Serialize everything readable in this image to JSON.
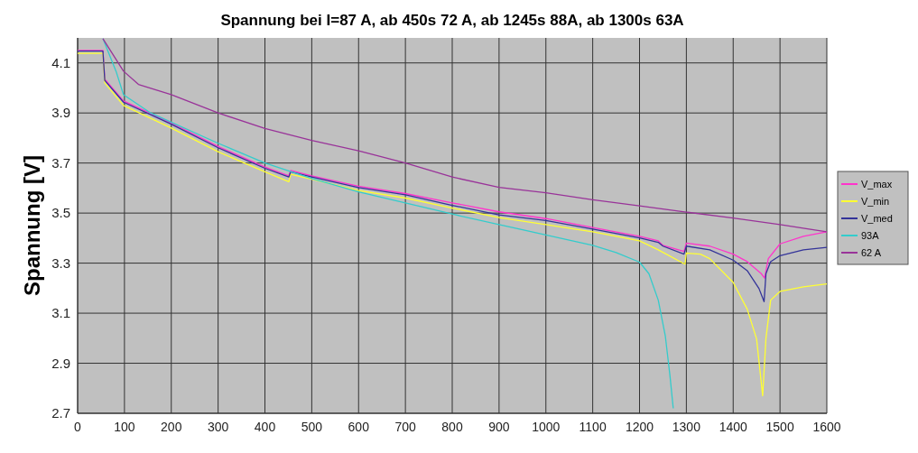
{
  "chart_data": {
    "type": "line",
    "title": "Spannung bei I=87 A, ab 450s 72 A, ab 1245s 88A, ab 1300s 63A",
    "ylabel": "Spannung [V]",
    "xlim": [
      0,
      1600
    ],
    "xticks": [
      0,
      100,
      200,
      300,
      400,
      500,
      600,
      700,
      800,
      900,
      1000,
      1100,
      1200,
      1300,
      1400,
      1500,
      1600
    ],
    "ylim": [
      2.7,
      4.2
    ],
    "yticks": [
      2.7,
      2.9,
      3.1,
      3.3,
      3.5,
      3.7,
      3.9,
      4.1
    ],
    "grid": true,
    "legend": "right",
    "line_style": "solid",
    "series": [
      {
        "name": "V_max",
        "color": "#ff33cc",
        "x": [
          0,
          54,
          58,
          98,
          200,
          300,
          400,
          451,
          455,
          500,
          600,
          700,
          800,
          900,
          1000,
          1100,
          1200,
          1240,
          1250,
          1295,
          1300,
          1350,
          1400,
          1430,
          1460,
          1467,
          1475,
          1500,
          1550,
          1600
        ],
        "values": [
          4.15,
          4.15,
          4.035,
          3.948,
          3.86,
          3.766,
          3.684,
          3.649,
          3.67,
          3.649,
          3.607,
          3.578,
          3.541,
          3.505,
          3.478,
          3.442,
          3.407,
          3.389,
          3.371,
          3.347,
          3.38,
          3.368,
          3.336,
          3.306,
          3.258,
          3.24,
          3.318,
          3.377,
          3.407,
          3.425
        ]
      },
      {
        "name": "V_min",
        "color": "#ffff33",
        "x": [
          0,
          54,
          58,
          98,
          200,
          300,
          400,
          451,
          455,
          500,
          600,
          700,
          800,
          900,
          1000,
          1100,
          1200,
          1240,
          1297,
          1300,
          1330,
          1350,
          1400,
          1430,
          1450,
          1463,
          1470,
          1480,
          1500,
          1550,
          1600
        ],
        "values": [
          4.138,
          4.138,
          4.02,
          3.93,
          3.84,
          3.745,
          3.665,
          3.625,
          3.655,
          3.635,
          3.59,
          3.56,
          3.52,
          3.482,
          3.454,
          3.425,
          3.389,
          3.353,
          3.296,
          3.34,
          3.336,
          3.318,
          3.223,
          3.116,
          2.997,
          2.77,
          3.0,
          3.152,
          3.187,
          3.205,
          3.217
        ]
      },
      {
        "name": "V_med",
        "color": "#333399",
        "x": [
          0,
          54,
          58,
          98,
          200,
          300,
          400,
          451,
          455,
          500,
          600,
          700,
          800,
          900,
          1000,
          1100,
          1200,
          1240,
          1250,
          1295,
          1300,
          1350,
          1400,
          1430,
          1455,
          1466,
          1470,
          1480,
          1500,
          1550,
          1600
        ],
        "values": [
          4.147,
          4.147,
          4.03,
          3.943,
          3.855,
          3.761,
          3.679,
          3.644,
          3.665,
          3.644,
          3.602,
          3.573,
          3.531,
          3.493,
          3.47,
          3.436,
          3.401,
          3.383,
          3.368,
          3.336,
          3.368,
          3.353,
          3.312,
          3.27,
          3.199,
          3.146,
          3.258,
          3.306,
          3.33,
          3.353,
          3.363
        ]
      },
      {
        "name": "93A",
        "color": "#33cccc",
        "x": [
          54,
          82,
          98,
          156,
          300,
          400,
          500,
          600,
          700,
          800,
          900,
          1000,
          1100,
          1150,
          1200,
          1220,
          1240,
          1255,
          1265,
          1272
        ],
        "values": [
          4.197,
          4.067,
          3.973,
          3.9,
          3.779,
          3.7,
          3.638,
          3.585,
          3.541,
          3.496,
          3.454,
          3.413,
          3.371,
          3.342,
          3.304,
          3.258,
          3.152,
          3.01,
          2.85,
          2.72
        ]
      },
      {
        "name": "62 A",
        "color": "#993399",
        "x": [
          54,
          98,
          130,
          200,
          300,
          400,
          500,
          600,
          700,
          800,
          900,
          1000,
          1100,
          1200,
          1300,
          1400,
          1500,
          1600
        ],
        "values": [
          4.197,
          4.067,
          4.014,
          3.973,
          3.9,
          3.838,
          3.79,
          3.749,
          3.7,
          3.644,
          3.603,
          3.581,
          3.553,
          3.529,
          3.504,
          3.48,
          3.454,
          3.425
        ]
      }
    ]
  }
}
